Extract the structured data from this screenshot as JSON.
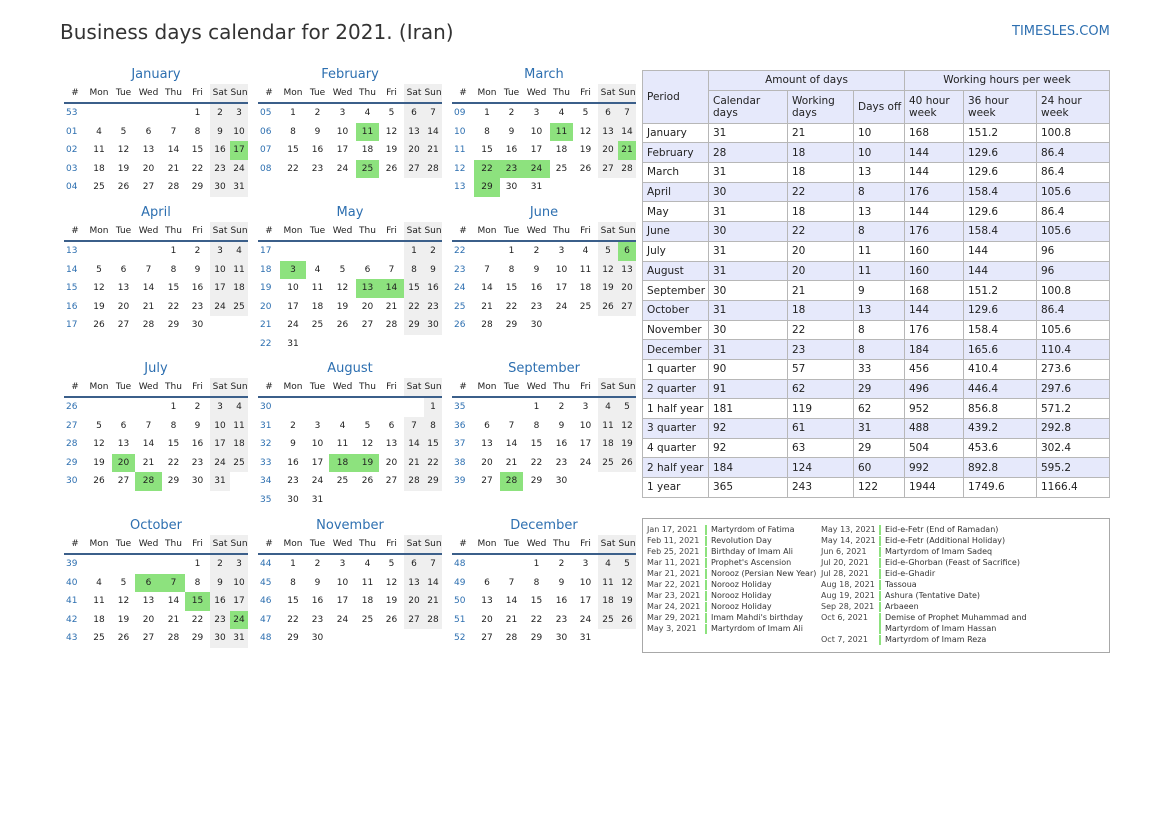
{
  "header": {
    "title": "Business days calendar for 2021. (Iran)",
    "site": "TIMESLES.COM"
  },
  "calendar": {
    "weekdays": [
      "Mon",
      "Tue",
      "Wed",
      "Thu",
      "Fri",
      "Sat",
      "Sun"
    ],
    "week_header": "#",
    "months": [
      {
        "name": "January",
        "weeks": [
          [
            "53",
            "",
            "",
            "",
            "",
            "1",
            "2",
            "3"
          ],
          [
            "01",
            "4",
            "5",
            "6",
            "7",
            "8",
            "9",
            "10"
          ],
          [
            "02",
            "11",
            "12",
            "13",
            "14",
            "15",
            "16",
            "17"
          ],
          [
            "03",
            "18",
            "19",
            "20",
            "21",
            "22",
            "23",
            "24"
          ],
          [
            "04",
            "25",
            "26",
            "27",
            "28",
            "29",
            "30",
            "31"
          ]
        ],
        "holidays": [
          "17"
        ]
      },
      {
        "name": "February",
        "weeks": [
          [
            "05",
            "1",
            "2",
            "3",
            "4",
            "5",
            "6",
            "7"
          ],
          [
            "06",
            "8",
            "9",
            "10",
            "11",
            "12",
            "13",
            "14"
          ],
          [
            "07",
            "15",
            "16",
            "17",
            "18",
            "19",
            "20",
            "21"
          ],
          [
            "08",
            "22",
            "23",
            "24",
            "25",
            "26",
            "27",
            "28"
          ]
        ],
        "holidays": [
          "11",
          "25"
        ]
      },
      {
        "name": "March",
        "weeks": [
          [
            "09",
            "1",
            "2",
            "3",
            "4",
            "5",
            "6",
            "7"
          ],
          [
            "10",
            "8",
            "9",
            "10",
            "11",
            "12",
            "13",
            "14"
          ],
          [
            "11",
            "15",
            "16",
            "17",
            "18",
            "19",
            "20",
            "21"
          ],
          [
            "12",
            "22",
            "23",
            "24",
            "25",
            "26",
            "27",
            "28"
          ],
          [
            "13",
            "29",
            "30",
            "31",
            "",
            "",
            "",
            ""
          ]
        ],
        "holidays": [
          "11",
          "21",
          "22",
          "23",
          "24",
          "29"
        ]
      },
      {
        "name": "April",
        "weeks": [
          [
            "13",
            "",
            "",
            "",
            "1",
            "2",
            "3",
            "4"
          ],
          [
            "14",
            "5",
            "6",
            "7",
            "8",
            "9",
            "10",
            "11"
          ],
          [
            "15",
            "12",
            "13",
            "14",
            "15",
            "16",
            "17",
            "18"
          ],
          [
            "16",
            "19",
            "20",
            "21",
            "22",
            "23",
            "24",
            "25"
          ],
          [
            "17",
            "26",
            "27",
            "28",
            "29",
            "30",
            "",
            ""
          ]
        ],
        "holidays": []
      },
      {
        "name": "May",
        "weeks": [
          [
            "17",
            "",
            "",
            "",
            "",
            "",
            "1",
            "2"
          ],
          [
            "18",
            "3",
            "4",
            "5",
            "6",
            "7",
            "8",
            "9"
          ],
          [
            "19",
            "10",
            "11",
            "12",
            "13",
            "14",
            "15",
            "16"
          ],
          [
            "20",
            "17",
            "18",
            "19",
            "20",
            "21",
            "22",
            "23"
          ],
          [
            "21",
            "24",
            "25",
            "26",
            "27",
            "28",
            "29",
            "30"
          ],
          [
            "22",
            "31",
            "",
            "",
            "",
            "",
            "",
            ""
          ]
        ],
        "holidays": [
          "3",
          "13",
          "14"
        ]
      },
      {
        "name": "June",
        "weeks": [
          [
            "22",
            "",
            "1",
            "2",
            "3",
            "4",
            "5",
            "6"
          ],
          [
            "23",
            "7",
            "8",
            "9",
            "10",
            "11",
            "12",
            "13"
          ],
          [
            "24",
            "14",
            "15",
            "16",
            "17",
            "18",
            "19",
            "20"
          ],
          [
            "25",
            "21",
            "22",
            "23",
            "24",
            "25",
            "26",
            "27"
          ],
          [
            "26",
            "28",
            "29",
            "30",
            "",
            "",
            "",
            ""
          ]
        ],
        "holidays": [
          "6"
        ]
      },
      {
        "name": "July",
        "weeks": [
          [
            "26",
            "",
            "",
            "",
            "1",
            "2",
            "3",
            "4"
          ],
          [
            "27",
            "5",
            "6",
            "7",
            "8",
            "9",
            "10",
            "11"
          ],
          [
            "28",
            "12",
            "13",
            "14",
            "15",
            "16",
            "17",
            "18"
          ],
          [
            "29",
            "19",
            "20",
            "21",
            "22",
            "23",
            "24",
            "25"
          ],
          [
            "30",
            "26",
            "27",
            "28",
            "29",
            "30",
            "31",
            ""
          ]
        ],
        "holidays": [
          "20",
          "28"
        ]
      },
      {
        "name": "August",
        "weeks": [
          [
            "30",
            "",
            "",
            "",
            "",
            "",
            "",
            "1"
          ],
          [
            "31",
            "2",
            "3",
            "4",
            "5",
            "6",
            "7",
            "8"
          ],
          [
            "32",
            "9",
            "10",
            "11",
            "12",
            "13",
            "14",
            "15"
          ],
          [
            "33",
            "16",
            "17",
            "18",
            "19",
            "20",
            "21",
            "22"
          ],
          [
            "34",
            "23",
            "24",
            "25",
            "26",
            "27",
            "28",
            "29"
          ],
          [
            "35",
            "30",
            "31",
            "",
            "",
            "",
            "",
            ""
          ]
        ],
        "holidays": [
          "18",
          "19"
        ]
      },
      {
        "name": "September",
        "weeks": [
          [
            "35",
            "",
            "",
            "1",
            "2",
            "3",
            "4",
            "5"
          ],
          [
            "36",
            "6",
            "7",
            "8",
            "9",
            "10",
            "11",
            "12"
          ],
          [
            "37",
            "13",
            "14",
            "15",
            "16",
            "17",
            "18",
            "19"
          ],
          [
            "38",
            "20",
            "21",
            "22",
            "23",
            "24",
            "25",
            "26"
          ],
          [
            "39",
            "27",
            "28",
            "29",
            "30",
            "",
            "",
            ""
          ]
        ],
        "holidays": [
          "28"
        ]
      },
      {
        "name": "October",
        "weeks": [
          [
            "39",
            "",
            "",
            "",
            "",
            "1",
            "2",
            "3"
          ],
          [
            "40",
            "4",
            "5",
            "6",
            "7",
            "8",
            "9",
            "10"
          ],
          [
            "41",
            "11",
            "12",
            "13",
            "14",
            "15",
            "16",
            "17"
          ],
          [
            "42",
            "18",
            "19",
            "20",
            "21",
            "22",
            "23",
            "24"
          ],
          [
            "43",
            "25",
            "26",
            "27",
            "28",
            "29",
            "30",
            "31"
          ]
        ],
        "holidays": [
          "6",
          "7",
          "15",
          "24"
        ]
      },
      {
        "name": "November",
        "weeks": [
          [
            "44",
            "1",
            "2",
            "3",
            "4",
            "5",
            "6",
            "7"
          ],
          [
            "45",
            "8",
            "9",
            "10",
            "11",
            "12",
            "13",
            "14"
          ],
          [
            "46",
            "15",
            "16",
            "17",
            "18",
            "19",
            "20",
            "21"
          ],
          [
            "47",
            "22",
            "23",
            "24",
            "25",
            "26",
            "27",
            "28"
          ],
          [
            "48",
            "29",
            "30",
            "",
            "",
            "",
            "",
            ""
          ]
        ],
        "holidays": []
      },
      {
        "name": "December",
        "weeks": [
          [
            "48",
            "",
            "",
            "1",
            "2",
            "3",
            "4",
            "5"
          ],
          [
            "49",
            "6",
            "7",
            "8",
            "9",
            "10",
            "11",
            "12"
          ],
          [
            "50",
            "13",
            "14",
            "15",
            "16",
            "17",
            "18",
            "19"
          ],
          [
            "51",
            "20",
            "21",
            "22",
            "23",
            "24",
            "25",
            "26"
          ],
          [
            "52",
            "27",
            "28",
            "29",
            "30",
            "31",
            "",
            ""
          ]
        ],
        "holidays": []
      }
    ]
  },
  "stats": {
    "period_label": "Period",
    "group_days": "Amount of days",
    "group_hours": "Working hours per week",
    "columns": [
      "Calendar days",
      "Working days",
      "Days off",
      "40 hour week",
      "36 hour week",
      "24 hour week"
    ],
    "rows": [
      [
        "January",
        "31",
        "21",
        "10",
        "168",
        "151.2",
        "100.8"
      ],
      [
        "February",
        "28",
        "18",
        "10",
        "144",
        "129.6",
        "86.4"
      ],
      [
        "March",
        "31",
        "18",
        "13",
        "144",
        "129.6",
        "86.4"
      ],
      [
        "April",
        "30",
        "22",
        "8",
        "176",
        "158.4",
        "105.6"
      ],
      [
        "May",
        "31",
        "18",
        "13",
        "144",
        "129.6",
        "86.4"
      ],
      [
        "June",
        "30",
        "22",
        "8",
        "176",
        "158.4",
        "105.6"
      ],
      [
        "July",
        "31",
        "20",
        "11",
        "160",
        "144",
        "96"
      ],
      [
        "August",
        "31",
        "20",
        "11",
        "160",
        "144",
        "96"
      ],
      [
        "September",
        "30",
        "21",
        "9",
        "168",
        "151.2",
        "100.8"
      ],
      [
        "October",
        "31",
        "18",
        "13",
        "144",
        "129.6",
        "86.4"
      ],
      [
        "November",
        "30",
        "22",
        "8",
        "176",
        "158.4",
        "105.6"
      ],
      [
        "December",
        "31",
        "23",
        "8",
        "184",
        "165.6",
        "110.4"
      ],
      [
        "1 quarter",
        "90",
        "57",
        "33",
        "456",
        "410.4",
        "273.6"
      ],
      [
        "2 quarter",
        "91",
        "62",
        "29",
        "496",
        "446.4",
        "297.6"
      ],
      [
        "1 half year",
        "181",
        "119",
        "62",
        "952",
        "856.8",
        "571.2"
      ],
      [
        "3 quarter",
        "92",
        "61",
        "31",
        "488",
        "439.2",
        "292.8"
      ],
      [
        "4 quarter",
        "92",
        "63",
        "29",
        "504",
        "453.6",
        "302.4"
      ],
      [
        "2 half year",
        "184",
        "124",
        "60",
        "992",
        "892.8",
        "595.2"
      ],
      [
        "1 year",
        "365",
        "243",
        "122",
        "1944",
        "1749.6",
        "1166.4"
      ]
    ]
  },
  "holidays": {
    "left": [
      {
        "date": "Jan 17, 2021",
        "name": "Martyrdom of Fatima"
      },
      {
        "date": "Feb 11, 2021",
        "name": "Revolution Day"
      },
      {
        "date": "Feb 25, 2021",
        "name": "Birthday of Imam Ali"
      },
      {
        "date": "Mar 11, 2021",
        "name": "Prophet's Ascension"
      },
      {
        "date": "Mar 21, 2021",
        "name": "Norooz (Persian New Year)"
      },
      {
        "date": "Mar 22, 2021",
        "name": "Norooz Holiday"
      },
      {
        "date": "Mar 23, 2021",
        "name": "Norooz Holiday"
      },
      {
        "date": "Mar 24, 2021",
        "name": "Norooz Holiday"
      },
      {
        "date": "Mar 29, 2021",
        "name": "Imam Mahdi's birthday"
      },
      {
        "date": "May 3, 2021",
        "name": "Martyrdom of Imam Ali"
      }
    ],
    "right": [
      {
        "date": "May 13, 2021",
        "name": "Eid-e-Fetr (End of Ramadan)"
      },
      {
        "date": "May 14, 2021",
        "name": "Eid-e-Fetr (Additional Holiday)"
      },
      {
        "date": "Jun 6, 2021",
        "name": "Martyrdom of Imam Sadeq"
      },
      {
        "date": "Jul 20, 2021",
        "name": "Eid-e-Ghorban (Feast of Sacrifice)"
      },
      {
        "date": "Jul 28, 2021",
        "name": "Eid-e-Ghadir"
      },
      {
        "date": "Aug 18, 2021",
        "name": "Tassoua"
      },
      {
        "date": "Aug 19, 2021",
        "name": "Ashura (Tentative Date)"
      },
      {
        "date": "Sep 28, 2021",
        "name": "Arbaeen"
      },
      {
        "date": "Oct 6, 2021",
        "name": "Demise of Prophet Muhammad and Martyrdom of Imam Hassan"
      },
      {
        "date": "Oct 7, 2021",
        "name": "Martyrdom of Imam Reza"
      }
    ]
  },
  "colors": {
    "accent": "#2d6fb0",
    "holiday": "#8de27e",
    "weekend": "#efefef",
    "header_band": "#e6e9fb"
  }
}
